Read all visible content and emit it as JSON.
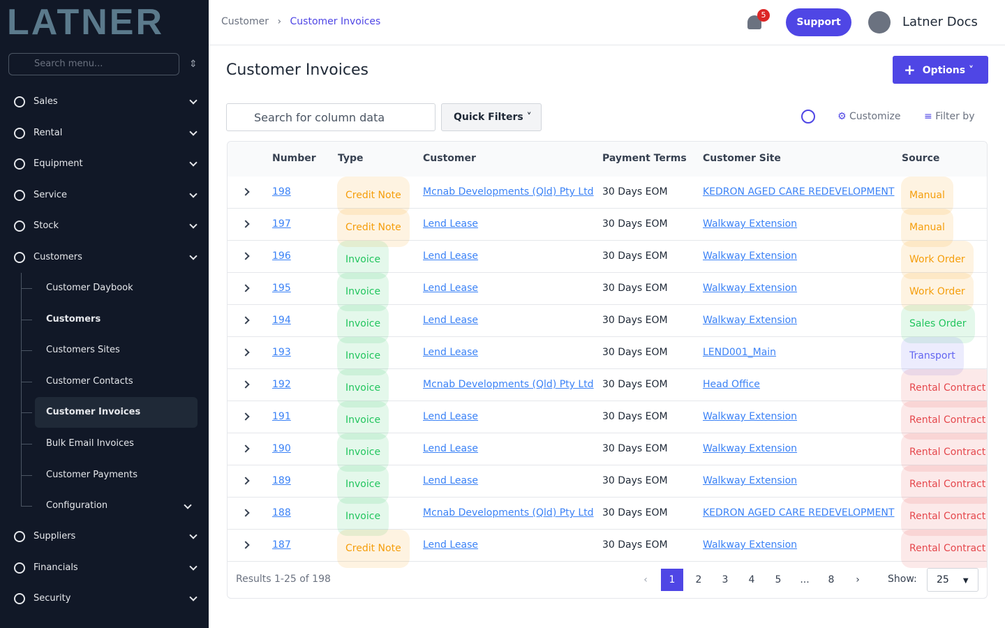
{
  "logo": "LATNER",
  "sidebar": {
    "search_placeholder": "Search menu...",
    "top_items": [
      "Sales",
      "Rental",
      "Equipment",
      "Service",
      "Stock",
      "Customers"
    ],
    "sub_items": [
      "Customer Daybook",
      "Customers",
      "Customers Sites",
      "Customer Contacts",
      "Customer Invoices",
      "Bulk Email Invoices",
      "Customer Payments",
      "Configuration"
    ],
    "bottom_items": [
      "Suppliers",
      "Financials",
      "Security"
    ]
  },
  "header": {
    "breadcrumb": [
      "Customer",
      "Customer Invoices"
    ],
    "notifications": 5,
    "support": "Support",
    "user": "Latner Docs"
  },
  "page": {
    "title": "Customer Invoices",
    "options": "Options"
  },
  "toolbar": {
    "search_placeholder": "Search for column data",
    "quick_filters": "Quick Filters",
    "customize": "Customize",
    "filter_by": "Filter by"
  },
  "table": {
    "columns": [
      "Number",
      "Type",
      "Customer",
      "Payment Terms",
      "Customer Site",
      "Source"
    ],
    "rows": [
      {
        "number": 198,
        "type": "Credit Note",
        "type_color": "#f59e0b",
        "customer": "Mcnab Developments (Qld) Pty Ltd",
        "terms": "30 Days EOM",
        "site": "KEDRON AGED CARE REDEVELOPMENT",
        "source": "Manual",
        "source_color": "#f59e0b"
      },
      {
        "number": 197,
        "type": "Credit Note",
        "type_color": "#f59e0b",
        "customer": "Lend Lease",
        "terms": "30 Days EOM",
        "site": "Walkway Extension",
        "source": "Manual",
        "source_color": "#f59e0b"
      },
      {
        "number": 196,
        "type": "Invoice",
        "type_color": "#22c55e",
        "customer": "Lend Lease",
        "terms": "30 Days EOM",
        "site": "Walkway Extension",
        "source": "Work Order",
        "source_color": "#f59e0b"
      },
      {
        "number": 195,
        "type": "Invoice",
        "type_color": "#22c55e",
        "customer": "Lend Lease",
        "terms": "30 Days EOM",
        "site": "Walkway Extension",
        "source": "Work Order",
        "source_color": "#f59e0b"
      },
      {
        "number": 194,
        "type": "Invoice",
        "type_color": "#22c55e",
        "customer": "Lend Lease",
        "terms": "30 Days EOM",
        "site": "Walkway Extension",
        "source": "Sales Order",
        "source_color": "#22c55e"
      },
      {
        "number": 193,
        "type": "Invoice",
        "type_color": "#22c55e",
        "customer": "Lend Lease",
        "terms": "30 Days EOM",
        "site": "LEND001_Main",
        "source": "Transport",
        "source_color": "#6366f1"
      },
      {
        "number": 192,
        "type": "Invoice",
        "type_color": "#22c55e",
        "customer": "Mcnab Developments (Qld) Pty Ltd",
        "terms": "30 Days EOM",
        "site": "Head Office",
        "source": "Rental Contract",
        "source_color": "#e5484d"
      },
      {
        "number": 191,
        "type": "Invoice",
        "type_color": "#22c55e",
        "customer": "Lend Lease",
        "terms": "30 Days EOM",
        "site": "Walkway Extension",
        "source": "Rental Contract",
        "source_color": "#e5484d"
      },
      {
        "number": 190,
        "type": "Invoice",
        "type_color": "#22c55e",
        "customer": "Lend Lease",
        "terms": "30 Days EOM",
        "site": "Walkway Extension",
        "source": "Rental Contract",
        "source_color": "#e5484d"
      },
      {
        "number": 189,
        "type": "Invoice",
        "type_color": "#22c55e",
        "customer": "Lend Lease",
        "terms": "30 Days EOM",
        "site": "Walkway Extension",
        "source": "Rental Contract",
        "source_color": "#e5484d"
      },
      {
        "number": 188,
        "type": "Invoice",
        "type_color": "#22c55e",
        "customer": "Mcnab Developments (Qld) Pty Ltd",
        "terms": "30 Days EOM",
        "site": "KEDRON AGED CARE REDEVELOPMENT",
        "source": "Rental Contract",
        "source_color": "#e5484d"
      },
      {
        "number": 187,
        "type": "Credit Note",
        "type_color": "#f59e0b",
        "customer": "Lend Lease",
        "terms": "30 Days EOM",
        "site": "Walkway Extension",
        "source": "Rental Contract",
        "source_color": "#e5484d"
      }
    ]
  },
  "footer": {
    "results": "Results 1-25 of 198",
    "pages": [
      1,
      2,
      3,
      4,
      5,
      "...",
      8
    ],
    "show_label": "Show:",
    "show_value": 25
  }
}
